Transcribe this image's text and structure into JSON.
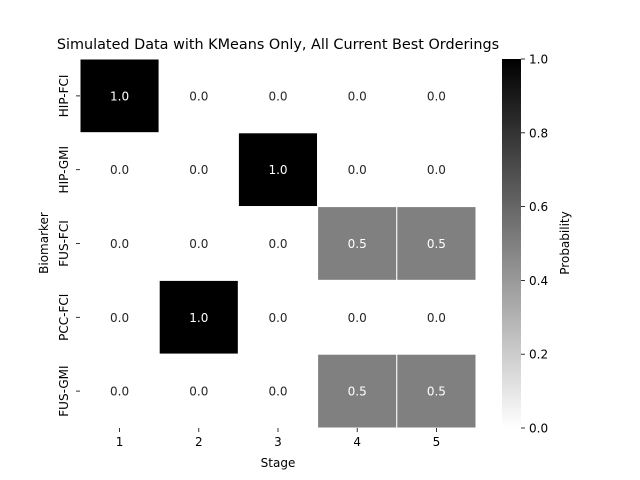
{
  "chart_data": {
    "type": "heatmap",
    "title": "Simulated Data with KMeans Only, All Current Best Orderings",
    "xlabel": "Stage",
    "ylabel": "Biomarker",
    "x_categories": [
      "1",
      "2",
      "3",
      "4",
      "5"
    ],
    "y_categories": [
      "HIP-FCI",
      "HIP-GMI",
      "FUS-FCI",
      "PCC-FCI",
      "FUS-GMI"
    ],
    "values": [
      [
        1.0,
        0.0,
        0.0,
        0.0,
        0.0
      ],
      [
        0.0,
        0.0,
        1.0,
        0.0,
        0.0
      ],
      [
        0.0,
        0.0,
        0.0,
        0.5,
        0.5
      ],
      [
        0.0,
        1.0,
        0.0,
        0.0,
        0.0
      ],
      [
        0.0,
        0.0,
        0.0,
        0.5,
        0.5
      ]
    ],
    "value_format": "0.0",
    "colorbar": {
      "label": "Probability",
      "range": [
        0.0,
        1.0
      ],
      "ticks": [
        "0.0",
        "0.2",
        "0.4",
        "0.6",
        "0.8",
        "1.0"
      ],
      "colormap": "grays"
    }
  }
}
